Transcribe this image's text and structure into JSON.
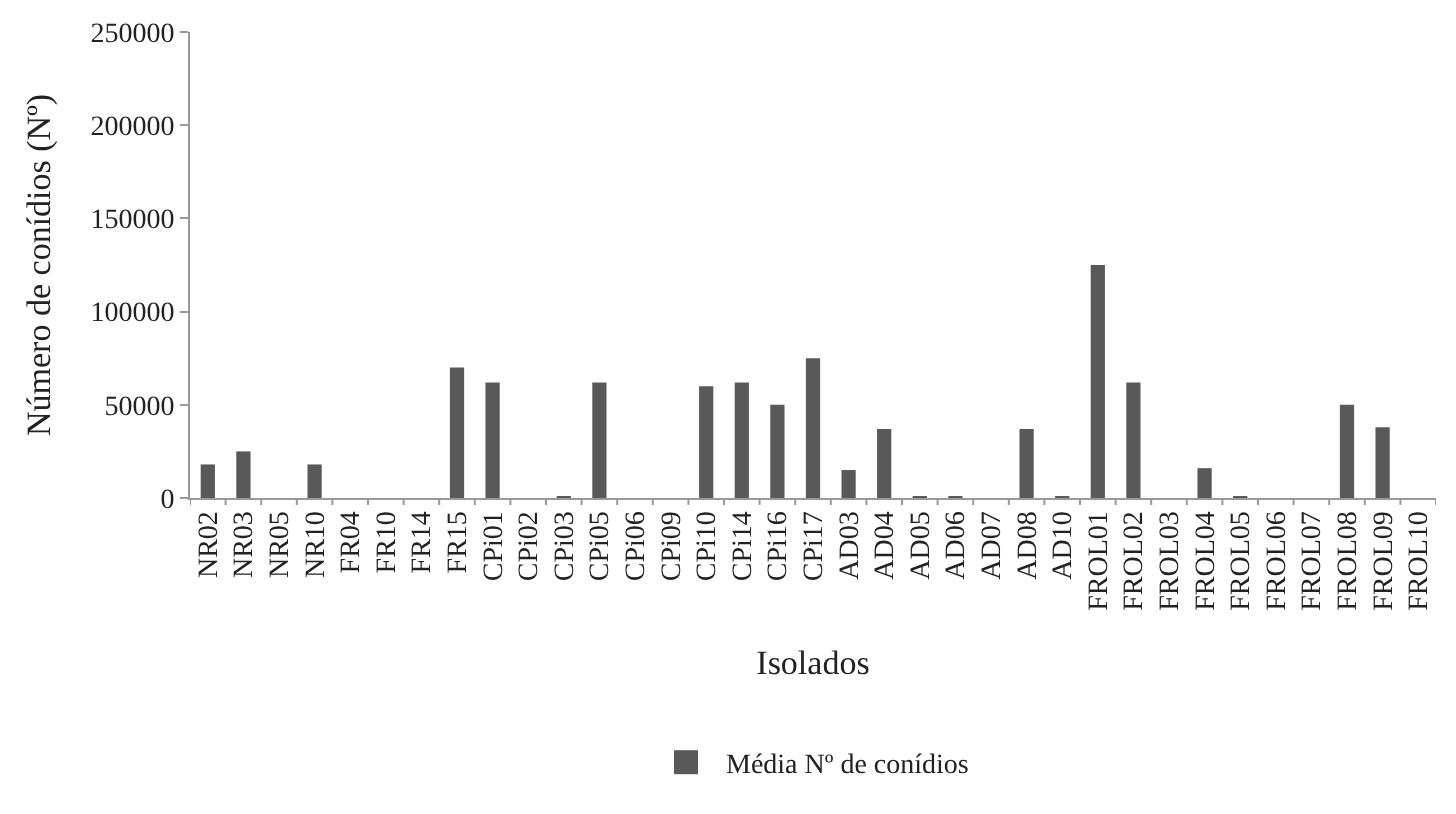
{
  "chart_data": {
    "type": "bar",
    "xlabel": "Isolados",
    "ylabel": "Número de conídios (Nº)",
    "categories": [
      "NR02",
      "NR03",
      "NR05",
      "NR10",
      "FR04",
      "FR10",
      "FR14",
      "FR15",
      "CPi01",
      "CPi02",
      "CPi03",
      "CPi05",
      "CPi06",
      "CPi09",
      "CPi10",
      "CPi14",
      "CPi16",
      "CPi17",
      "AD03",
      "AD04",
      "AD05",
      "AD06",
      "AD07",
      "AD08",
      "AD10",
      "FROL01",
      "FROL02",
      "FROL03",
      "FROL04",
      "FROL05",
      "FROL06",
      "FROL07",
      "FROL08",
      "FROL09",
      "FROL10"
    ],
    "series": [
      {
        "name": "Média Nº de conídios",
        "color": "#595959",
        "values": [
          18000,
          25000,
          0,
          18000,
          0,
          0,
          0,
          70000,
          62000,
          0,
          1000,
          62000,
          0,
          0,
          60000,
          62000,
          50000,
          75000,
          15000,
          37000,
          1000,
          1000,
          0,
          37000,
          1000,
          125000,
          62000,
          0,
          16000,
          1000,
          0,
          0,
          50000,
          38000,
          0
        ]
      }
    ],
    "ylim": [
      0,
      250000
    ],
    "yticks": [
      0,
      50000,
      100000,
      150000,
      200000,
      250000
    ],
    "legend": "bottom"
  }
}
